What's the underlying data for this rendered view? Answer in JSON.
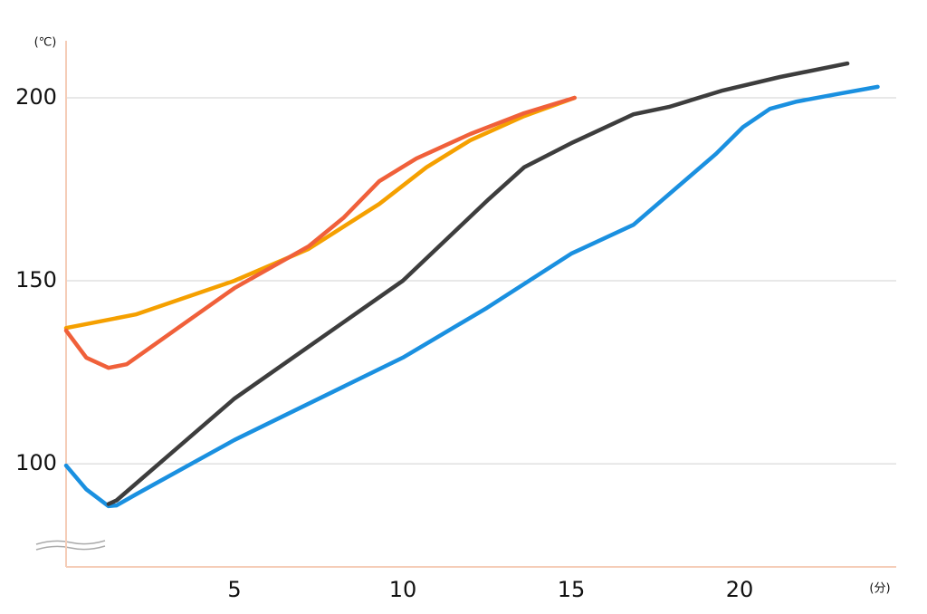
{
  "chart_data": {
    "type": "line",
    "x_unit": "(分)",
    "y_unit": "(℃)",
    "xlim": [
      0,
      24.65
    ],
    "ylim": [
      71.8,
      215.6
    ],
    "xticks": [
      5,
      10,
      15,
      20
    ],
    "yticks": [
      100,
      150,
      200
    ],
    "grid": "y",
    "series": [
      {
        "color": "#1a90e0",
        "x": [
          0,
          0.6,
          1.26,
          1.5,
          2.07,
          5,
          10,
          12.5,
          15,
          16.85,
          19.3,
          20.1,
          20.9,
          21.7,
          23,
          24.1
        ],
        "values": [
          99.5,
          93,
          88.4,
          88.6,
          91.6,
          106.5,
          129,
          142.6,
          157.4,
          165.3,
          184.7,
          192,
          197,
          199,
          201.2,
          203
        ]
      },
      {
        "color": "#3d3d3d",
        "x": [
          1.26,
          1.5,
          5,
          10,
          12.55,
          13.6,
          15,
          16.85,
          17.9,
          19.5,
          21.2,
          23.2
        ],
        "values": [
          89,
          90,
          117.8,
          150,
          172.3,
          181,
          187.6,
          195.5,
          197.5,
          202,
          205.7,
          209.4
        ]
      },
      {
        "color": "#f5a000",
        "x": [
          0,
          2.07,
          5,
          7.2,
          9.3,
          10.7,
          12,
          13.6,
          15.1
        ],
        "values": [
          137.1,
          140.8,
          150,
          158.7,
          171,
          181,
          188.4,
          195,
          200
        ]
      },
      {
        "color": "#f0603a",
        "x": [
          0,
          0.6,
          1.26,
          1.8,
          3.4,
          5,
          7.2,
          8.25,
          9.3,
          10.4,
          12,
          13.6,
          15.1
        ],
        "values": [
          136.4,
          129,
          126.2,
          127.2,
          137.6,
          148,
          159.4,
          167.3,
          177.2,
          183.4,
          190.1,
          195.8,
          200
        ]
      }
    ]
  }
}
